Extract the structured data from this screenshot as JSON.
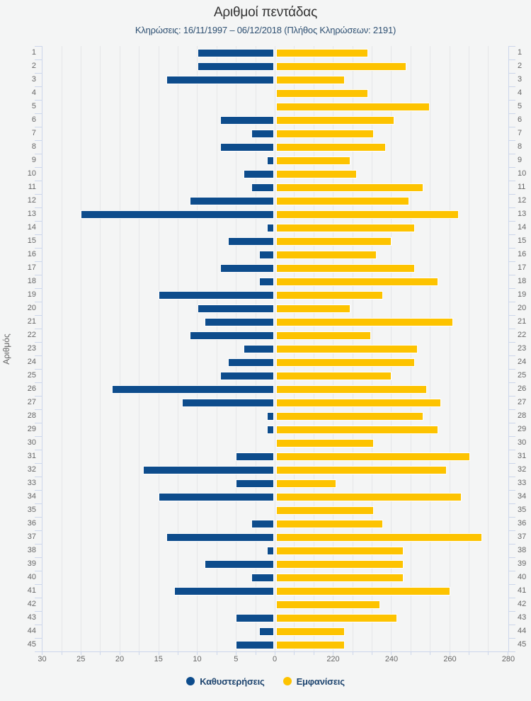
{
  "chart_data": {
    "type": "bar",
    "orientation": "horizontal-diverging",
    "title": "Αριθμοί πεντάδας",
    "subtitle": "Κληρώσεις: 16/11/1997 – 06/12/2018 (Πλήθος Κληρώσεων: 2191)",
    "y_axis_title": "Αριθμός",
    "categories": [
      1,
      2,
      3,
      4,
      5,
      6,
      7,
      8,
      9,
      10,
      11,
      12,
      13,
      14,
      15,
      16,
      17,
      18,
      19,
      20,
      21,
      22,
      23,
      24,
      25,
      26,
      27,
      28,
      29,
      30,
      31,
      32,
      33,
      34,
      35,
      36,
      37,
      38,
      39,
      40,
      41,
      42,
      43,
      44,
      45
    ],
    "series": [
      {
        "name": "Καθυστερήσεις",
        "color": "#0d4c8c",
        "side": "left",
        "values": [
          10,
          10,
          14,
          0,
          0,
          7,
          3,
          7,
          1,
          4,
          3,
          11,
          25,
          1,
          6,
          2,
          7,
          2,
          15,
          10,
          9,
          11,
          4,
          6,
          7,
          21,
          12,
          1,
          1,
          0,
          5,
          17,
          5,
          15,
          0,
          3,
          14,
          1,
          9,
          3,
          13,
          0,
          5,
          2,
          5
        ]
      },
      {
        "name": "Εμφανίσεις",
        "color": "#fdc300",
        "side": "right",
        "values": [
          232,
          245,
          224,
          232,
          253,
          241,
          234,
          238,
          226,
          228,
          251,
          246,
          263,
          248,
          240,
          235,
          248,
          256,
          237,
          226,
          261,
          233,
          249,
          248,
          240,
          252,
          257,
          251,
          256,
          234,
          267,
          259,
          221,
          264,
          234,
          237,
          271,
          244,
          244,
          244,
          260,
          236,
          242,
          224,
          224
        ]
      }
    ],
    "left_axis": {
      "tick_labels": [
        "30",
        "25",
        "20",
        "15",
        "10",
        "5",
        "0"
      ],
      "tick_values": [
        30,
        25,
        20,
        15,
        10,
        5,
        0
      ],
      "min": 0,
      "max": 30,
      "reversed": true
    },
    "right_axis": {
      "tick_labels": [
        "220",
        "240",
        "260",
        "280"
      ],
      "tick_values": [
        220,
        240,
        260,
        280
      ],
      "min": 200,
      "max": 280
    },
    "grid": true,
    "legend_position": "bottom",
    "colors": {
      "background": "#f4f5f5",
      "gridline": "#e5e6e8",
      "axis_line": "#ccd6eb",
      "axis_label": "#666666",
      "title": "#333333",
      "subtitle": "#2e5072",
      "legend_text": "#1e456f"
    }
  }
}
